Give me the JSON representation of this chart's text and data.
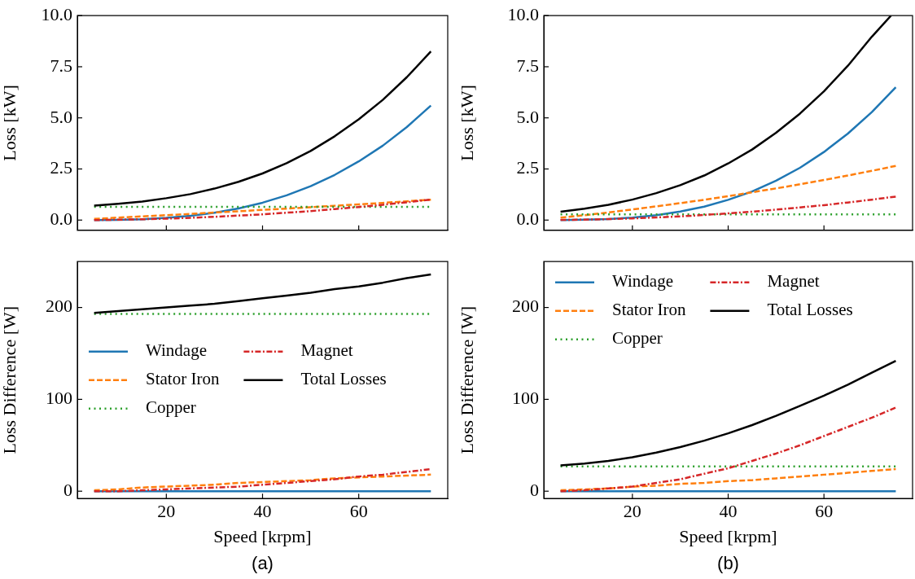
{
  "chart_data": [
    {
      "type": "line",
      "ylabel": "Loss [kW]",
      "x": [
        5,
        10,
        15,
        20,
        25,
        30,
        35,
        40,
        45,
        50,
        55,
        60,
        65,
        70,
        75
      ],
      "xlim": [
        1.5,
        78.5
      ],
      "xticks": [
        20,
        40,
        60
      ],
      "ylim": [
        -0.5,
        10
      ],
      "yticks": [
        {
          "value": 0,
          "label": "0.0"
        },
        {
          "value": 2.5,
          "label": "2.5"
        },
        {
          "value": 5,
          "label": "5.0"
        },
        {
          "value": 7.5,
          "label": "7.5"
        },
        {
          "value": 10,
          "label": "10.0"
        }
      ],
      "tick_labels": "y",
      "grid": false,
      "legend": false,
      "series": [
        {
          "color": "#1f77b4",
          "line_style": "solid",
          "values": [
            0.0,
            0.01,
            0.04,
            0.11,
            0.21,
            0.36,
            0.57,
            0.85,
            1.21,
            1.66,
            2.21,
            2.87,
            3.64,
            4.55,
            5.6
          ]
        },
        {
          "color": "#ff7f0e",
          "line_style": "dashed",
          "values": [
            0.06,
            0.12,
            0.18,
            0.24,
            0.3,
            0.37,
            0.43,
            0.5,
            0.56,
            0.63,
            0.7,
            0.77,
            0.84,
            0.92,
            1.0
          ]
        },
        {
          "color": "#2ca02c",
          "line_style": "dotted",
          "values": [
            0.65,
            0.65,
            0.65,
            0.65,
            0.65,
            0.65,
            0.65,
            0.65,
            0.65,
            0.65,
            0.65,
            0.65,
            0.65,
            0.65,
            0.65
          ]
        },
        {
          "color": "#d62728",
          "line_style": "dashdot",
          "values": [
            0.0,
            0.02,
            0.04,
            0.07,
            0.11,
            0.16,
            0.22,
            0.28,
            0.36,
            0.44,
            0.54,
            0.64,
            0.75,
            0.87,
            1.0
          ]
        },
        {
          "color": "#000000",
          "line_style": "solid",
          "values": [
            0.71,
            0.8,
            0.91,
            1.07,
            1.27,
            1.54,
            1.87,
            2.28,
            2.78,
            3.38,
            4.1,
            4.93,
            5.88,
            6.99,
            8.25
          ]
        }
      ]
    },
    {
      "type": "line",
      "ylabel": "Loss [kW]",
      "x": [
        5,
        10,
        15,
        20,
        25,
        30,
        35,
        40,
        45,
        50,
        55,
        60,
        65,
        70,
        75
      ],
      "xlim": [
        1.5,
        78.5
      ],
      "xticks": [
        20,
        40,
        60
      ],
      "ylim": [
        -0.5,
        10
      ],
      "yticks": [
        {
          "value": 0,
          "label": "0.0"
        },
        {
          "value": 2.5,
          "label": "2.5"
        },
        {
          "value": 5,
          "label": "5.0"
        },
        {
          "value": 7.5,
          "label": "7.5"
        },
        {
          "value": 10,
          "label": "10.0"
        }
      ],
      "tick_labels": "y",
      "grid": false,
      "legend": false,
      "series": [
        {
          "color": "#1f77b4",
          "line_style": "solid",
          "values": [
            0.0,
            0.02,
            0.05,
            0.12,
            0.24,
            0.42,
            0.66,
            0.99,
            1.4,
            1.93,
            2.56,
            3.33,
            4.23,
            5.28,
            6.5
          ]
        },
        {
          "color": "#ff7f0e",
          "line_style": "dashed",
          "values": [
            0.12,
            0.24,
            0.37,
            0.52,
            0.67,
            0.83,
            0.99,
            1.17,
            1.36,
            1.55,
            1.75,
            1.96,
            2.18,
            2.41,
            2.65
          ]
        },
        {
          "color": "#2ca02c",
          "line_style": "dotted",
          "values": [
            0.28,
            0.28,
            0.28,
            0.28,
            0.28,
            0.28,
            0.28,
            0.28,
            0.28,
            0.28,
            0.28,
            0.28,
            0.28,
            0.28,
            0.28
          ]
        },
        {
          "color": "#d62728",
          "line_style": "dashdot",
          "values": [
            0.01,
            0.02,
            0.05,
            0.08,
            0.13,
            0.18,
            0.25,
            0.33,
            0.41,
            0.51,
            0.62,
            0.73,
            0.86,
            1.0,
            1.15
          ]
        },
        {
          "color": "#000000",
          "line_style": "solid",
          "x": [
            5,
            10,
            15,
            20,
            25,
            30,
            35,
            40,
            45,
            50,
            55,
            60,
            65,
            70,
            74
          ],
          "values": [
            0.41,
            0.56,
            0.75,
            1.0,
            1.32,
            1.71,
            2.18,
            2.77,
            3.45,
            4.27,
            5.21,
            6.3,
            7.55,
            8.97,
            10.0
          ]
        }
      ]
    },
    {
      "type": "line",
      "xlabel": "Speed [krpm]",
      "ylabel": "Loss Difference [W]",
      "annotations": [
        "(a)"
      ],
      "x": [
        5,
        10,
        15,
        20,
        25,
        30,
        35,
        40,
        45,
        50,
        55,
        60,
        65,
        70,
        75
      ],
      "xlim": [
        1.5,
        78.5
      ],
      "xticks": [
        20,
        40,
        60
      ],
      "ylim": [
        -8,
        250
      ],
      "yticks": [
        0,
        100,
        200
      ],
      "grid": false,
      "legend": "left",
      "series": [
        {
          "name": "Windage",
          "color": "#1f77b4",
          "line_style": "solid",
          "values": [
            0,
            0,
            0,
            0,
            0,
            0,
            0,
            0,
            0,
            0,
            0,
            0,
            0,
            0,
            0
          ]
        },
        {
          "name": "Stator Iron",
          "color": "#ff7f0e",
          "line_style": "dashed",
          "values": [
            1,
            2,
            4,
            5,
            6,
            7,
            9,
            10,
            11,
            12,
            14,
            15,
            16,
            17,
            18
          ]
        },
        {
          "name": "Copper",
          "color": "#2ca02c",
          "line_style": "dotted",
          "values": [
            193,
            193,
            193,
            193,
            193,
            193,
            193,
            193,
            193,
            193,
            193,
            193,
            193,
            193,
            193
          ]
        },
        {
          "name": "Magnet",
          "color": "#d62728",
          "line_style": "dashdot",
          "values": [
            0,
            0,
            1,
            2,
            3,
            4,
            5,
            7,
            9,
            11,
            13,
            16,
            18,
            21,
            24
          ]
        },
        {
          "name": "Total Losses",
          "color": "#000000",
          "line_style": "solid",
          "values": [
            194,
            196,
            198,
            200,
            202,
            204,
            207,
            210,
            213,
            216,
            220,
            223,
            227,
            232,
            236
          ]
        }
      ]
    },
    {
      "type": "line",
      "xlabel": "Speed [krpm]",
      "ylabel": "Loss Difference [W]",
      "annotations": [
        "(b)"
      ],
      "x": [
        5,
        10,
        15,
        20,
        25,
        30,
        35,
        40,
        45,
        50,
        55,
        60,
        65,
        70,
        75
      ],
      "xlim": [
        1.5,
        78.5
      ],
      "xticks": [
        20,
        40,
        60
      ],
      "ylim": [
        -8,
        250
      ],
      "yticks": [
        0,
        100,
        200
      ],
      "grid": false,
      "legend": "top left",
      "series": [
        {
          "name": "Windage",
          "color": "#1f77b4",
          "line_style": "solid",
          "values": [
            0,
            0,
            0,
            0,
            0,
            0,
            0,
            0,
            0,
            0,
            0,
            0,
            0,
            0,
            0
          ]
        },
        {
          "name": "Stator Iron",
          "color": "#ff7f0e",
          "line_style": "dashed",
          "values": [
            1,
            2,
            3,
            5,
            6,
            8,
            9,
            11,
            12,
            14,
            16,
            18,
            20,
            22,
            24
          ]
        },
        {
          "name": "Copper",
          "color": "#2ca02c",
          "line_style": "dotted",
          "values": [
            27,
            27,
            27,
            27,
            27,
            27,
            27,
            27,
            27,
            27,
            27,
            27,
            27,
            27,
            27
          ]
        },
        {
          "name": "Magnet",
          "color": "#d62728",
          "line_style": "dashdot",
          "values": [
            0,
            1,
            3,
            5,
            9,
            13,
            19,
            25,
            33,
            41,
            50,
            60,
            70,
            80,
            91
          ]
        },
        {
          "name": "Total Losses",
          "color": "#000000",
          "line_style": "solid",
          "values": [
            28,
            30,
            33,
            37,
            42,
            48,
            55,
            63,
            72,
            82,
            93,
            104,
            116,
            129,
            142
          ]
        }
      ]
    }
  ]
}
